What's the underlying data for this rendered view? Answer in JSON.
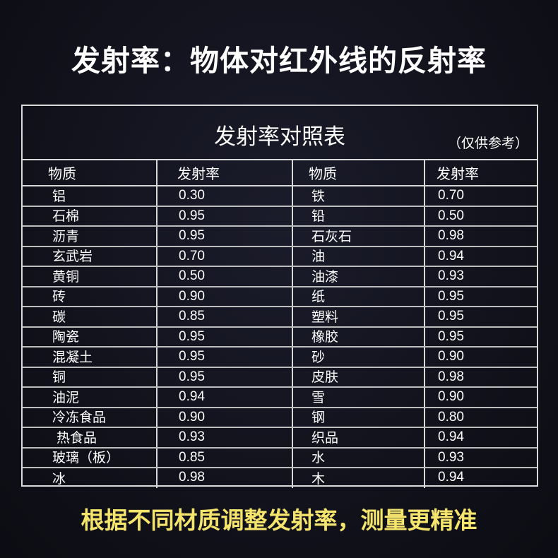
{
  "title": "发射率：物体对红外线的反射率",
  "table": {
    "title": "发射率对照表",
    "note": "（仅供参考）",
    "headers": [
      "物质",
      "发射率",
      "物质",
      "发射率"
    ],
    "rows": [
      [
        "铝",
        "0.30",
        "铁",
        "0.70"
      ],
      [
        "石棉",
        "0.95",
        "铅",
        "0.50"
      ],
      [
        "沥青",
        "0.95",
        "石灰石",
        "0.98"
      ],
      [
        "玄武岩",
        "0.70",
        "油",
        "0.94"
      ],
      [
        "黄铜",
        "0.50",
        "油漆",
        "0.93"
      ],
      [
        "砖",
        "0.90",
        "纸",
        "0.95"
      ],
      [
        "碳",
        "0.85",
        "塑料",
        "0.95"
      ],
      [
        "陶瓷",
        "0.95",
        "橡胶",
        "0.95"
      ],
      [
        "混凝土",
        "0.95",
        "砂",
        "0.90"
      ],
      [
        "铜",
        "0.95",
        "皮肤",
        "0.98"
      ],
      [
        "油泥",
        "0.94",
        "雪",
        "0.90"
      ],
      [
        "冷冻食品",
        "0.90",
        "钢",
        "0.80"
      ],
      [
        " 热食品",
        "0.93",
        "织品",
        "0.94"
      ],
      [
        "玻璃（板）",
        "0.85",
        "水",
        "0.93"
      ],
      [
        "冰",
        "0.98",
        "木",
        "0.94"
      ]
    ]
  },
  "footer": "根据不同材质调整发射率，测量更精准",
  "colors": {
    "background": "#12121c",
    "footer_text": "#f6e56c",
    "grid": "#d8d8d8"
  }
}
